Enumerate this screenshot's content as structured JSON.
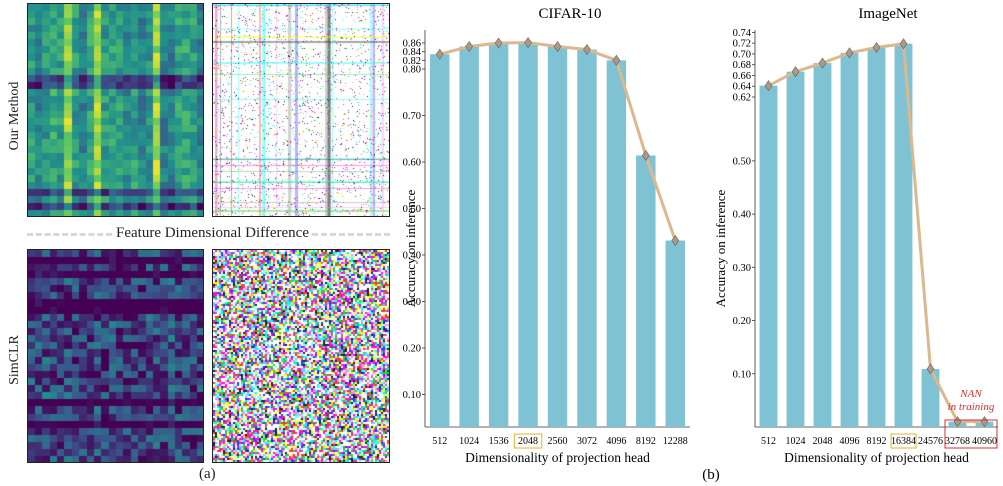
{
  "panel_a": {
    "row_labels": {
      "top": "Our Method",
      "bottom": "SimCLR"
    },
    "divider_text": "Feature Dimensional Difference",
    "caption": "(a)"
  },
  "panel_b": {
    "caption": "(b)"
  },
  "colors": {
    "bar": "#7ec2d3",
    "trend_line": "#dbb88e",
    "marker": "#a89a8e",
    "highlight_box": "#e0b030",
    "nan_box": "#d03030",
    "nan_text": "#d03030",
    "viridis_dark": "#3b1f5e",
    "viridis_mid": "#21918c",
    "viridis_light": "#b5de2b"
  },
  "chart_data": [
    {
      "type": "bar",
      "title": "CIFAR-10",
      "xlabel": "Dimensionality of projection head",
      "ylabel": "Accuracy on inference",
      "categories": [
        "512",
        "1024",
        "1536",
        "2048",
        "2560",
        "3072",
        "4096",
        "8192",
        "12288"
      ],
      "values": [
        0.834,
        0.852,
        0.86,
        0.861,
        0.852,
        0.845,
        0.82,
        0.614,
        0.431
      ],
      "highlighted_category": "2048",
      "overlay": "line with diamond markers",
      "yticks": [
        0.1,
        0.2,
        0.3,
        0.4,
        0.5,
        0.6,
        0.7,
        0.8,
        0.82,
        0.84,
        0.86
      ],
      "ytick_labels": [
        "0.10",
        "0.20",
        "0.30",
        "0.40",
        "0.50",
        "0.60",
        "0.70",
        "0.80",
        "0.82",
        "0.84",
        "0.86"
      ],
      "ylim": [
        0.03,
        0.89
      ],
      "grid": false
    },
    {
      "type": "bar",
      "title": "ImageNet",
      "xlabel": "Dimensionality of projection head",
      "ylabel": "Accuracy on inference",
      "categories": [
        "512",
        "1024",
        "2048",
        "4096",
        "8192",
        "16384",
        "24576",
        "32768",
        "40960"
      ],
      "values": [
        0.641,
        0.667,
        0.683,
        0.702,
        0.712,
        0.719,
        0.109,
        0.01,
        0.01
      ],
      "highlighted_category": "16384",
      "boxed_categories": [
        "32768",
        "40960"
      ],
      "annotation": {
        "line1": "NAN",
        "line2": "in training"
      },
      "overlay": "line with diamond markers",
      "yticks": [
        0.1,
        0.2,
        0.3,
        0.4,
        0.5,
        0.62,
        0.64,
        0.66,
        0.68,
        0.7,
        0.72,
        0.74
      ],
      "ytick_labels": [
        "0.10",
        "0.20",
        "0.30",
        "0.40",
        "0.50",
        "0.62",
        "0.64",
        "0.66",
        "0.68",
        "0.70",
        "0.72",
        "0.74"
      ],
      "ylim": [
        0.0,
        0.75
      ],
      "grid": false
    }
  ]
}
